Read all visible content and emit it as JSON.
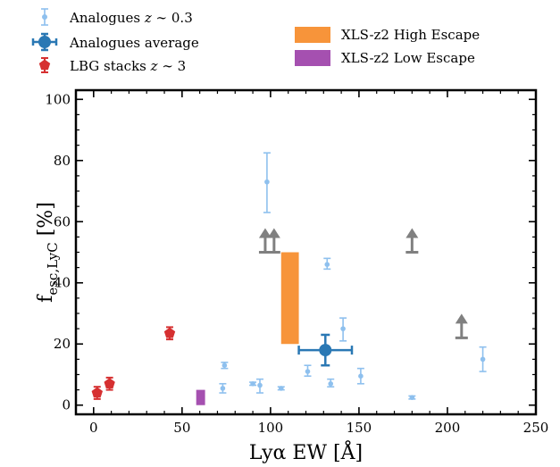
{
  "chart_data": {
    "type": "scatter",
    "xlabel": "Lyα EW [Å]",
    "ylabel_main": "f",
    "ylabel_sub": "esc,LyC",
    "ylabel_unit": " [%]",
    "xlim": [
      -10,
      250
    ],
    "ylim": [
      -3,
      103
    ],
    "xticks": [
      0,
      50,
      100,
      150,
      200,
      250
    ],
    "yticks": [
      0,
      20,
      40,
      60,
      80,
      100
    ],
    "grid": false,
    "legend_left": [
      {
        "label_pre": "Analogues ",
        "label_math": "z",
        "label_post": " ∼ 0.3",
        "color": "#8ec0ee",
        "marker": "dot-errorbar"
      },
      {
        "label_pre": "Analogues average",
        "label_math": "",
        "label_post": "",
        "color": "#2a78b4",
        "marker": "big-dot-cross"
      },
      {
        "label_pre": "LBG stacks ",
        "label_math": "z",
        "label_post": " ∼ 3",
        "color": "#d63031",
        "marker": "pentagon"
      }
    ],
    "legend_right": [
      {
        "label": "XLS-z2 High Escape",
        "color": "#f7943a"
      },
      {
        "label": "XLS-z2 Low Escape",
        "color": "#a550b0"
      }
    ],
    "series": [
      {
        "name": "Analogues z ∼ 0.3",
        "color": "#8ec0ee",
        "points": [
          {
            "x": 73,
            "y": 5.5,
            "lo": 4,
            "hi": 7
          },
          {
            "x": 74,
            "y": 13,
            "lo": 12,
            "hi": 14
          },
          {
            "x": 90,
            "y": 7,
            "lo": 6.5,
            "hi": 7.5
          },
          {
            "x": 94,
            "y": 6.5,
            "lo": 4,
            "hi": 8.5
          },
          {
            "x": 98,
            "y": 73,
            "lo": 63,
            "hi": 82.5
          },
          {
            "x": 106,
            "y": 5.5,
            "lo": 5,
            "hi": 6
          },
          {
            "x": 121,
            "y": 11,
            "lo": 9.5,
            "hi": 13
          },
          {
            "x": 132,
            "y": 46,
            "lo": 44.5,
            "hi": 48
          },
          {
            "x": 134,
            "y": 7,
            "lo": 6,
            "hi": 8.5
          },
          {
            "x": 141,
            "y": 25,
            "lo": 21,
            "hi": 28.5
          },
          {
            "x": 151,
            "y": 9.5,
            "lo": 7,
            "hi": 12
          },
          {
            "x": 180,
            "y": 2.5,
            "lo": 2,
            "hi": 3
          },
          {
            "x": 220,
            "y": 15,
            "lo": 11,
            "hi": 19
          }
        ]
      },
      {
        "name": "Analogues average",
        "color": "#2a78b4",
        "points": [
          {
            "x": 131,
            "y": 18,
            "xlo": 116,
            "xhi": 146,
            "lo": 13,
            "hi": 23
          }
        ]
      },
      {
        "name": "LBG stacks z ∼ 3",
        "color": "#d63031",
        "points": [
          {
            "x": 2,
            "y": 4,
            "lo": 2,
            "hi": 6
          },
          {
            "x": 9,
            "y": 7,
            "lo": 5,
            "hi": 9
          },
          {
            "x": 43,
            "y": 23.5,
            "lo": 21.5,
            "hi": 25.5
          }
        ]
      }
    ],
    "lower_limits": {
      "color": "#808080",
      "points": [
        {
          "x": 97,
          "y": 50
        },
        {
          "x": 102,
          "y": 50
        },
        {
          "x": 180,
          "y": 50
        },
        {
          "x": 208,
          "y": 22
        }
      ]
    },
    "bars": [
      {
        "name": "XLS-z2 High Escape",
        "x0": 106,
        "x1": 116,
        "y0": 20,
        "y1": 50,
        "color": "#f7943a"
      },
      {
        "name": "XLS-z2 Low Escape",
        "x0": 58,
        "x1": 63,
        "y0": 0,
        "y1": 5,
        "color": "#a550b0"
      }
    ]
  }
}
